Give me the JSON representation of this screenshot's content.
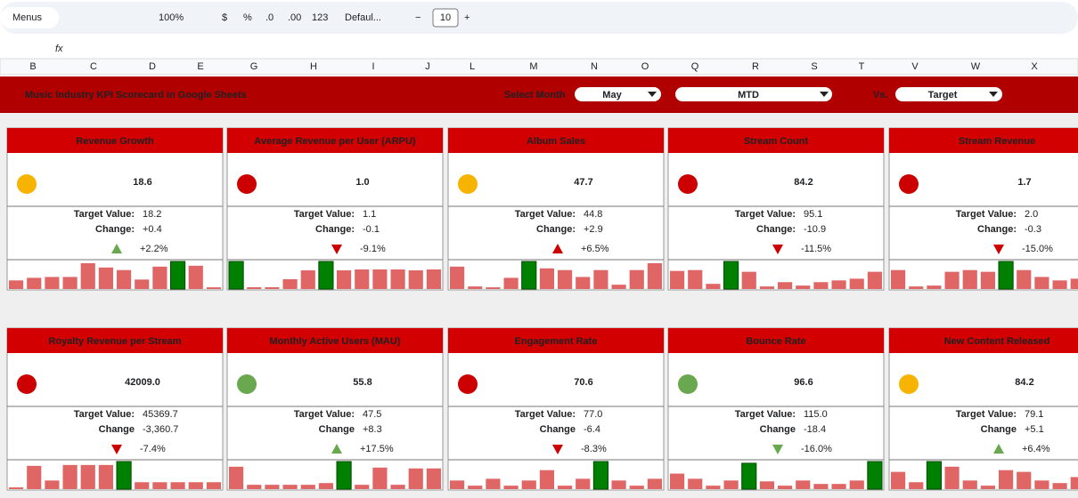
{
  "toolbar": {
    "search": "Menus",
    "zoom": "100%",
    "currency": "$",
    "percent": "%",
    "dec_less": ".0",
    "dec_more": ".00",
    "number_format": "123",
    "font": "Defaul...",
    "font_size": "10"
  },
  "formula_bar": {
    "fx": "fx"
  },
  "columns": [
    "B",
    "C",
    "D",
    "E",
    "G",
    "H",
    "I",
    "J",
    "L",
    "M",
    "N",
    "O",
    "Q",
    "R",
    "S",
    "T",
    "V",
    "W",
    "X"
  ],
  "header": {
    "title": "Music Industry KPI Scorecard in Google Sheets",
    "select_month_label": "Select Month",
    "month": "May",
    "period": "MTD",
    "vs_label": "Vs.",
    "comparison": "Target"
  },
  "cards": [
    {
      "title": "Revenue Growth",
      "value": "18.6",
      "status_color": "#f6b400",
      "target_label": "Target Value:",
      "target": "18.2",
      "change_label": "Change:",
      "change": "+0.4",
      "change_pct": "+2.2%",
      "direction": "up",
      "change_color": "#6aa84f",
      "bars": [
        10,
        13,
        14,
        14,
        30,
        25,
        22,
        11,
        26,
        32,
        27,
        2
      ],
      "highlight_bars": [
        9
      ]
    },
    {
      "title": "Average Revenue per User (ARPU)",
      "value": "1.0",
      "status_color": "#cc0000",
      "target_label": "Target Value:",
      "target": "1.1",
      "change_label": "Change:",
      "change": "-0.1",
      "change_pct": "-9.1%",
      "direction": "down",
      "change_color": "#cc0000",
      "bars": [
        31,
        2,
        2,
        11,
        21,
        31,
        21,
        22,
        22,
        22,
        21,
        22
      ],
      "highlight_bars": [
        0,
        5
      ]
    },
    {
      "title": "Album Sales",
      "value": "47.7",
      "status_color": "#f6b400",
      "target_label": "Target Value:",
      "target": "44.8",
      "change_label": "Change:",
      "change": "+2.9",
      "change_pct": "+6.5%",
      "direction": "up",
      "change_color": "#cc0000",
      "bars": [
        26,
        3,
        2,
        13,
        32,
        24,
        22,
        14,
        22,
        5,
        22,
        30
      ],
      "highlight_bars": [
        4
      ]
    },
    {
      "title": "Stream Count",
      "value": "84.2",
      "status_color": "#cc0000",
      "target_label": "Target Value:",
      "target": "95.1",
      "change_label": "Change:",
      "change": "-10.9",
      "change_pct": "-11.5%",
      "direction": "down",
      "change_color": "#cc0000",
      "bars": [
        21,
        22,
        6,
        32,
        20,
        3,
        8,
        4,
        8,
        10,
        12,
        20
      ],
      "highlight_bars": [
        3
      ]
    },
    {
      "title": "Stream Revenue",
      "value": "1.7",
      "status_color": "#cc0000",
      "target_label": "Target Value:",
      "target": "2.0",
      "change_label": "Change:",
      "change": "-0.3",
      "change_pct": "-15.0%",
      "direction": "down",
      "change_color": "#cc0000",
      "bars": [
        22,
        3,
        4,
        20,
        22,
        20,
        32,
        22,
        14,
        10,
        12,
        20
      ],
      "highlight_bars": [
        6
      ]
    },
    {
      "title": "Royalty Revenue per Stream",
      "value": "42009.0",
      "status_color": "#cc0000",
      "target_label": "Target Value:",
      "target": "45369.7",
      "change_label": "Change",
      "change": "-3,360.7",
      "change_pct": "-7.4%",
      "direction": "down",
      "change_color": "#cc0000",
      "bars": [
        2,
        27,
        10,
        28,
        28,
        28,
        32,
        8,
        8,
        8,
        8,
        8
      ],
      "highlight_bars": [
        6
      ]
    },
    {
      "title": "Monthly Active Users (MAU)",
      "value": "55.8",
      "status_color": "#6aa84f",
      "target_label": "Target Value:",
      "target": "47.5",
      "change_label": "Change",
      "change": "+8.3",
      "change_pct": "+17.5%",
      "direction": "up",
      "change_color": "#6aa84f",
      "bars": [
        26,
        5,
        5,
        5,
        5,
        7,
        32,
        5,
        25,
        5,
        24,
        24
      ],
      "highlight_bars": [
        6
      ]
    },
    {
      "title": "Engagement Rate",
      "value": "70.6",
      "status_color": "#cc0000",
      "target_label": "Target Value:",
      "target": "77.0",
      "change_label": "Change",
      "change": "-6.4",
      "change_pct": "-8.3%",
      "direction": "down",
      "change_color": "#cc0000",
      "bars": [
        10,
        4,
        12,
        4,
        10,
        22,
        4,
        12,
        32,
        10,
        4,
        12
      ],
      "highlight_bars": [
        8
      ]
    },
    {
      "title": "Bounce Rate",
      "value": "96.6",
      "status_color": "#6aa84f",
      "target_label": "Target Value:",
      "target": "115.0",
      "change_label": "Change",
      "change": "-18.4",
      "change_pct": "-16.0%",
      "direction": "down",
      "change_color": "#6aa84f",
      "bars": [
        18,
        12,
        4,
        10,
        30,
        9,
        4,
        10,
        6,
        6,
        10,
        32
      ],
      "highlight_bars": [
        4,
        11
      ]
    },
    {
      "title": "New Content Released",
      "value": "84.2",
      "status_color": "#f6b400",
      "target_label": "Target Value:",
      "target": "79.1",
      "change_label": "Change",
      "change": "+5.1",
      "change_pct": "+6.4%",
      "direction": "up",
      "change_color": "#6aa84f",
      "bars": [
        20,
        8,
        32,
        26,
        10,
        4,
        22,
        20,
        10,
        7,
        14,
        18
      ],
      "highlight_bars": [
        2
      ]
    }
  ]
}
